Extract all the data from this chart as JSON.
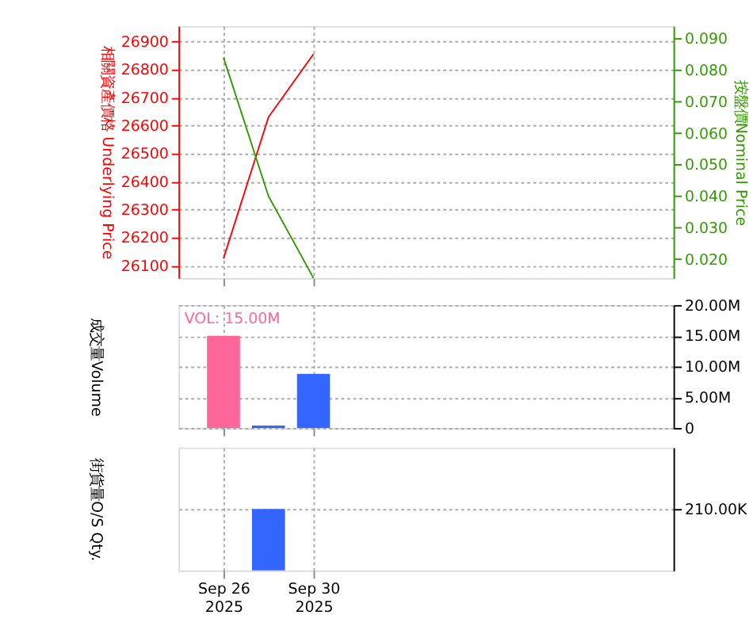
{
  "chart_data": [
    {
      "type": "line",
      "categories": [
        null,
        null,
        null,
        null,
        null,
        null,
        null,
        null,
        null,
        null,
        null,
        null
      ],
      "ylabel": "相關資產價格 Underlying Price",
      "y2label": "按盤價Nominal Price",
      "ylim": [
        26055,
        26955
      ],
      "yticks": [
        26100,
        26200,
        26300,
        26400,
        26500,
        26600,
        26700,
        26800,
        26900
      ],
      "y2lim": [
        0.014,
        0.094
      ],
      "y2ticks": [
        {
          "value": 0.02,
          "label": "0.020"
        },
        {
          "value": 0.03,
          "label": "0.030"
        },
        {
          "value": 0.04,
          "label": "0.040"
        },
        {
          "value": 0.05,
          "label": "0.050"
        },
        {
          "value": 0.06,
          "label": "0.060"
        },
        {
          "value": 0.07,
          "label": "0.070"
        },
        {
          "value": 0.08,
          "label": "0.080"
        },
        {
          "value": 0.09,
          "label": "0.090"
        }
      ],
      "grid": true,
      "tick_labels": "y",
      "series": [
        {
          "color": "#ff0000",
          "values": [
            null,
            26125,
            26630,
            26855,
            null,
            null,
            null,
            null,
            null,
            null,
            null,
            null
          ]
        },
        {
          "color": "#339900",
          "axis": "y2",
          "values": [
            null,
            0.084,
            0.04,
            0.014,
            null,
            null,
            null,
            null,
            null,
            null,
            null,
            null
          ]
        }
      ]
    },
    {
      "type": "bar",
      "categories": [
        null,
        null,
        null,
        null,
        null,
        null,
        null,
        null,
        null,
        null,
        null,
        null
      ],
      "ylabel": "成交量Volume",
      "ylim": [
        0,
        20000000
      ],
      "yticks": [
        0,
        {
          "value": 5000000,
          "label": "5.00M"
        },
        {
          "value": 10000000,
          "label": "10.00M"
        },
        {
          "value": 15000000,
          "label": "15.00M"
        },
        {
          "value": 20000000,
          "label": "20.00M"
        }
      ],
      "grid": true,
      "tick_labels": "y",
      "annotations": [
        "VOL: 15.00M"
      ],
      "values": [
        null,
        15000000,
        400000,
        8800000,
        null,
        null,
        null,
        null,
        null,
        null,
        null,
        null
      ],
      "colors": [
        null,
        "#ff6699",
        "#3366ff",
        "#3366ff",
        null,
        null,
        null,
        null,
        null,
        null,
        null,
        null
      ]
    },
    {
      "type": "bar",
      "categories": [
        null,
        "Sep 26\n2025",
        null,
        "Sep 30\n2025",
        null,
        null,
        null,
        null,
        null,
        null,
        null,
        null
      ],
      "ylabel": "街貨量O/S Qty.",
      "ylim": [
        0,
        420000
      ],
      "yticks": [
        {
          "value": 210000,
          "label": "210.00K"
        }
      ],
      "grid": true,
      "values": [
        null,
        null,
        210000,
        null,
        null,
        null,
        null,
        null,
        null,
        null,
        null,
        null
      ],
      "colors": [
        null,
        null,
        "#3366ff",
        null,
        null,
        null,
        null,
        null,
        null,
        null,
        null,
        null
      ]
    }
  ]
}
